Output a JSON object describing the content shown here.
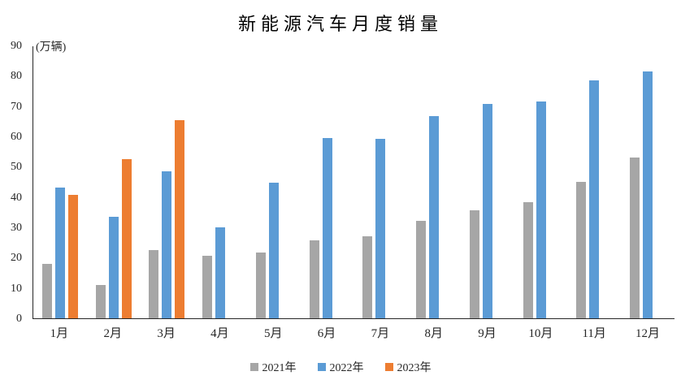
{
  "chart_data": {
    "type": "bar",
    "title": "新能源汽车月度销量",
    "unit_label": "(万辆)",
    "categories": [
      "1月",
      "2月",
      "3月",
      "4月",
      "5月",
      "6月",
      "7月",
      "8月",
      "9月",
      "10月",
      "11月",
      "12月"
    ],
    "series": [
      {
        "name": "2021年",
        "color": "#A6A6A6",
        "values": [
          17.9,
          11.0,
          22.6,
          20.6,
          21.7,
          25.6,
          27.1,
          32.1,
          35.7,
          38.3,
          45.0,
          53.1
        ]
      },
      {
        "name": "2022年",
        "color": "#5B9BD5",
        "values": [
          43.1,
          33.4,
          48.4,
          29.9,
          44.7,
          59.6,
          59.3,
          66.6,
          70.8,
          71.4,
          78.6,
          81.4
        ]
      },
      {
        "name": "2023年",
        "color": "#ED7D31",
        "values": [
          40.8,
          52.5,
          65.3,
          null,
          null,
          null,
          null,
          null,
          null,
          null,
          null,
          null
        ]
      }
    ],
    "xlabel": "",
    "ylabel": "",
    "ylim": [
      0,
      90
    ],
    "ytick_step": 10,
    "grid": false,
    "legend_position": "bottom",
    "axis_color": "#262626"
  }
}
